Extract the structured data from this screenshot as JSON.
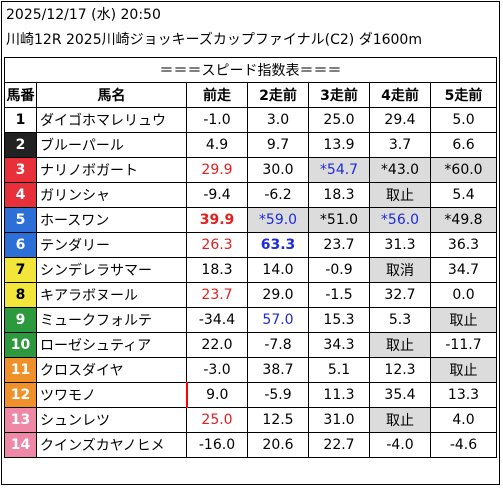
{
  "header": {
    "line1": "2025/12/17 (水) 20:50",
    "line2": "川崎12R 2025川崎ジョッキーズカップファイナル(C2) ダ1600m"
  },
  "table": {
    "banner": "＝＝＝スピード指数表＝＝＝",
    "columns": [
      "馬番",
      "馬名",
      "前走",
      "2走前",
      "3走前",
      "4走前",
      "5走前"
    ],
    "rows": [
      {
        "num": "1",
        "name": "ダイゴホマレリュウ",
        "vals": [
          "-1.0",
          "3.0",
          "25.0",
          "29.4",
          "5.0"
        ]
      },
      {
        "num": "2",
        "name": "ブルーパール",
        "vals": [
          "4.9",
          "9.7",
          "13.9",
          "3.7",
          "6.6"
        ]
      },
      {
        "num": "3",
        "name": "ナリノボガート",
        "vals": [
          "29.9",
          "30.0",
          "*54.7",
          "*43.0",
          "*60.0"
        ]
      },
      {
        "num": "4",
        "name": "ガリンシャ",
        "vals": [
          "-9.4",
          "-6.2",
          "18.3",
          "取止",
          "5.4"
        ]
      },
      {
        "num": "5",
        "name": "ホースワン",
        "vals": [
          "39.9",
          "*59.0",
          "*51.0",
          "*56.0",
          "*49.8"
        ]
      },
      {
        "num": "6",
        "name": "テンダリー",
        "vals": [
          "26.3",
          "63.3",
          "23.7",
          "31.3",
          "36.3"
        ]
      },
      {
        "num": "7",
        "name": "シンデレラサマー",
        "vals": [
          "18.3",
          "14.0",
          "-0.9",
          "取消",
          "34.7"
        ]
      },
      {
        "num": "8",
        "name": "キアラボヌール",
        "vals": [
          "23.7",
          "29.0",
          "-1.5",
          "32.7",
          "0.0"
        ]
      },
      {
        "num": "9",
        "name": "ミュークフォルテ",
        "vals": [
          "-34.4",
          "57.0",
          "15.3",
          "5.3",
          "取止"
        ]
      },
      {
        "num": "10",
        "name": "ローゼシュティア",
        "vals": [
          "22.0",
          "-7.8",
          "34.3",
          "取止",
          "-11.7"
        ]
      },
      {
        "num": "11",
        "name": "クロスダイヤ",
        "vals": [
          "-3.0",
          "38.7",
          "5.1",
          "12.3",
          "取止"
        ]
      },
      {
        "num": "12",
        "name": "ツワモノ",
        "vals": [
          "9.0",
          "-5.9",
          "11.3",
          "35.4",
          "13.3"
        ]
      },
      {
        "num": "13",
        "name": "シュンレツ",
        "vals": [
          "25.0",
          "12.5",
          "31.0",
          "取止",
          "4.0"
        ]
      },
      {
        "num": "14",
        "name": "クインズカヤノヒメ",
        "vals": [
          "-16.0",
          "20.6",
          "22.7",
          "-4.0",
          "-4.6"
        ]
      }
    ]
  },
  "colors": {
    "gate": [
      "#ffffff",
      "#222222",
      "#e8303a",
      "#2c6fd6",
      "#f3e63a",
      "#2c9a3c",
      "#f0902a",
      "#ef88a6"
    ],
    "red_value": "#e0201f",
    "blue_value": "#1d2bd8",
    "gray_cell": "#dcdcdc"
  }
}
